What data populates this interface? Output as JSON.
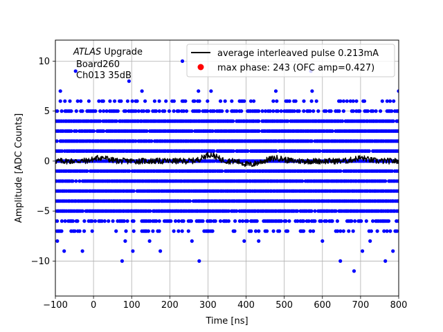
{
  "chart_data": {
    "type": "scatter",
    "xlabel": "Time [ns]",
    "ylabel": "Amplitude [ADC Counts]",
    "xlim": [
      -100,
      800
    ],
    "ylim": [
      -13.5,
      12.1
    ],
    "x_ticks": [
      -100,
      0,
      100,
      200,
      300,
      400,
      500,
      600,
      700,
      800
    ],
    "y_ticks": [
      -10,
      -5,
      0,
      5,
      10
    ],
    "grid": true,
    "annotation": {
      "line1_italic": "ATLAS",
      "line1_rest": " Upgrade",
      "line2": "Board260",
      "line3": "Ch013 35dB"
    },
    "legend": {
      "position": "top-right",
      "entries": [
        {
          "label": "average interleaved pulse 0.213mA",
          "color": "#000000",
          "marker": "line"
        },
        {
          "label": "max phase: 243 (OFC amp=0.427)",
          "color": "#ff0000",
          "marker": "dot"
        }
      ]
    },
    "series": [
      {
        "kind": "scatter",
        "color": "#0000ff",
        "dense_levels": [
          -5,
          -4,
          -3,
          -2,
          -1,
          0,
          1,
          2,
          3,
          4
        ],
        "medium_levels": [
          5,
          -6
        ],
        "sparse_levels": [
          6,
          -7
        ],
        "outliers": [
          {
            "x": -47,
            "y": 9
          },
          {
            "x": -87,
            "y": 7
          },
          {
            "x": 93,
            "y": 8
          },
          {
            "x": 127,
            "y": 7
          },
          {
            "x": 233,
            "y": 10
          },
          {
            "x": 275,
            "y": 7
          },
          {
            "x": 308,
            "y": 7
          },
          {
            "x": 478,
            "y": 7
          },
          {
            "x": 570,
            "y": 9
          },
          {
            "x": 573,
            "y": 7
          },
          {
            "x": 800,
            "y": 7
          },
          {
            "x": -95,
            "y": -8
          },
          {
            "x": 83,
            "y": -8
          },
          {
            "x": 147,
            "y": -8
          },
          {
            "x": 258,
            "y": -8
          },
          {
            "x": 395,
            "y": -8
          },
          {
            "x": 433,
            "y": -8
          },
          {
            "x": 600,
            "y": -8
          },
          {
            "x": 725,
            "y": -8
          },
          {
            "x": -77,
            "y": -9
          },
          {
            "x": -29,
            "y": -9
          },
          {
            "x": 103,
            "y": -9
          },
          {
            "x": 175,
            "y": -9
          },
          {
            "x": 705,
            "y": -9
          },
          {
            "x": 785,
            "y": -9
          },
          {
            "x": 75,
            "y": -10
          },
          {
            "x": 277,
            "y": -10
          },
          {
            "x": 647,
            "y": -10
          },
          {
            "x": 765,
            "y": -10
          },
          {
            "x": 683,
            "y": -11
          }
        ]
      },
      {
        "kind": "line",
        "name": "average interleaved pulse 0.213mA",
        "color": "#000000",
        "x_range": [
          -100,
          800
        ],
        "y_mean": 0,
        "y_noise": 0.3,
        "bumps": [
          {
            "x": 20,
            "amp": 0.35
          },
          {
            "x": 305,
            "amp": 0.65
          },
          {
            "x": 410,
            "amp": -0.35
          },
          {
            "x": 480,
            "amp": 0.3
          },
          {
            "x": 700,
            "amp": 0.3
          }
        ]
      }
    ]
  }
}
